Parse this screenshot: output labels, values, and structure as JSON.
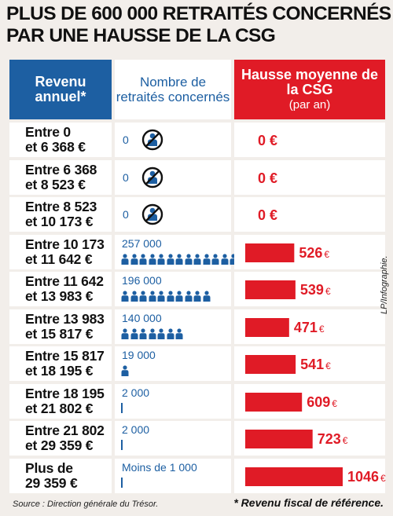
{
  "title": "PLUS DE 600 000 RETRAITÉS CONCERNÉS PAR UNE HAUSSE DE LA CSG",
  "headers": {
    "revenu": "Revenu annuel*",
    "nombre": "Nombre de retraités concernés",
    "hausse": "Hausse moyenne de la CSG",
    "hausse_sub": "(par an)"
  },
  "chart_data": {
    "type": "bar",
    "title": "PLUS DE 600 000 RETRAITÉS CONCERNÉS PAR UNE HAUSSE DE LA CSG",
    "categories": [
      "Entre 0 et 6 368 €",
      "Entre 6 368 et 8 523 €",
      "Entre 8 523 et 10 173 €",
      "Entre 10 173 et 11 642 €",
      "Entre 11 642 et 13 983 €",
      "Entre 13 983 et 15 817 €",
      "Entre 15 817 et 18 195 €",
      "Entre 18 195 et 21 802 €",
      "Entre 21 802 et 29 359 €",
      "Plus de 29 359 €"
    ],
    "rows": [
      {
        "revenu_line1": "Entre 0",
        "revenu_line2": "et 6 368 €",
        "retraites_label": "0",
        "retraites": 0,
        "hausse_label": "0 €",
        "hausse": 0
      },
      {
        "revenu_line1": "Entre 6 368",
        "revenu_line2": "et 8 523 €",
        "retraites_label": "0",
        "retraites": 0,
        "hausse_label": "0 €",
        "hausse": 0
      },
      {
        "revenu_line1": "Entre 8 523",
        "revenu_line2": "et 10 173 €",
        "retraites_label": "0",
        "retraites": 0,
        "hausse_label": "0 €",
        "hausse": 0
      },
      {
        "revenu_line1": "Entre 10 173",
        "revenu_line2": "et 11 642 €",
        "retraites_label": "257 000",
        "retraites": 257000,
        "hausse_label": "526",
        "hausse": 526
      },
      {
        "revenu_line1": "Entre 11 642",
        "revenu_line2": "et 13 983 €",
        "retraites_label": "196 000",
        "retraites": 196000,
        "hausse_label": "539",
        "hausse": 539
      },
      {
        "revenu_line1": "Entre 13 983",
        "revenu_line2": "et 15 817 €",
        "retraites_label": "140 000",
        "retraites": 140000,
        "hausse_label": "471",
        "hausse": 471
      },
      {
        "revenu_line1": "Entre 15 817",
        "revenu_line2": "et 18 195 €",
        "retraites_label": "19 000",
        "retraites": 19000,
        "hausse_label": "541",
        "hausse": 541
      },
      {
        "revenu_line1": "Entre 18 195",
        "revenu_line2": "et 21 802 €",
        "retraites_label": "2 000",
        "retraites": 2000,
        "hausse_label": "609",
        "hausse": 609
      },
      {
        "revenu_line1": "Entre 21 802",
        "revenu_line2": "et 29 359 €",
        "retraites_label": "2 000",
        "retraites": 2000,
        "hausse_label": "723",
        "hausse": 723
      },
      {
        "revenu_line1": "Plus de",
        "revenu_line2": "29 359 €",
        "retraites_label": "Moins de 1 000",
        "retraites": 1000,
        "hausse_label": "1046",
        "hausse": 1046
      }
    ],
    "currency_symbol": "€",
    "xlim": [
      0,
      1046
    ],
    "colors": {
      "bar": "#e01b26",
      "people": "#1d5fa2",
      "header_revenu": "#1d5fa2",
      "header_hausse": "#e01b26"
    },
    "icons": {
      "person": "person-icon",
      "none": "no-person-icon"
    }
  },
  "credit": "LP/Infographie.",
  "source": "Source : Direction générale du Trésor.",
  "note": "* Revenu fiscal de référence."
}
